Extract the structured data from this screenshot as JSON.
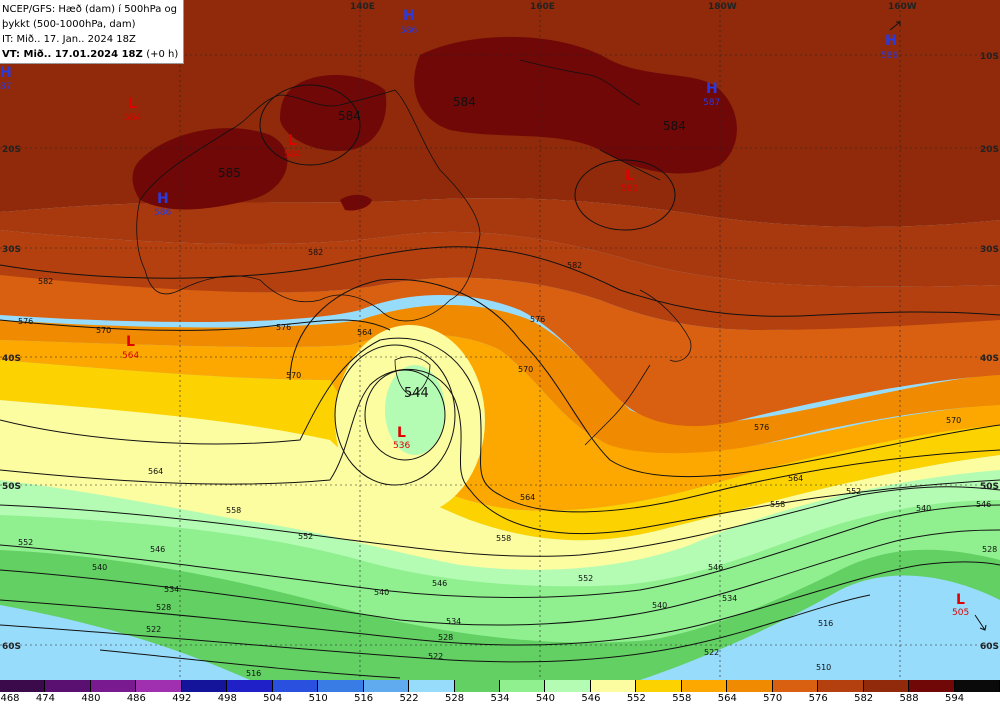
{
  "info": {
    "line1": "NCEP/GFS: Hæð (dam) í 500hPa og",
    "line2": "þykkt (500-1000hPa, dam)",
    "line3": "IT: Mið.. 17. Jan.. 2024 18Z",
    "vt": "VT: Mið.. 17.01.2024 18Z",
    "offset": "(+0 h)"
  },
  "map": {
    "lon_labels": [
      "140E",
      "160E",
      "180W",
      "160W"
    ],
    "lat_labels": [
      "10S",
      "20S",
      "30S",
      "40S",
      "50S",
      "60S"
    ],
    "centers": [
      {
        "type": "H",
        "value": "586"
      },
      {
        "type": "H",
        "value": "586"
      },
      {
        "type": "H",
        "value": "87"
      },
      {
        "type": "L",
        "value": "584"
      },
      {
        "type": "L",
        "value": "584"
      },
      {
        "type": "H",
        "value": "586"
      },
      {
        "type": "H",
        "value": "587"
      },
      {
        "type": "L",
        "value": "580"
      },
      {
        "type": "L",
        "value": "564"
      },
      {
        "type": "L",
        "value": "536"
      },
      {
        "type": "L",
        "value": "505"
      }
    ],
    "region_labels": [
      "585",
      "584",
      "584",
      "584",
      "544"
    ],
    "contour_labels": [
      "582",
      "582",
      "582",
      "576",
      "576",
      "576",
      "576",
      "570",
      "570",
      "570",
      "570",
      "564",
      "564",
      "564",
      "564",
      "558",
      "558",
      "558",
      "552",
      "552",
      "552",
      "552",
      "546",
      "546",
      "546",
      "546",
      "540",
      "540",
      "540",
      "540",
      "534",
      "534",
      "534",
      "528",
      "528",
      "528",
      "522",
      "522",
      "522",
      "516",
      "516",
      "510"
    ]
  },
  "legend": {
    "values": [
      "468",
      "474",
      "480",
      "486",
      "492",
      "498",
      "504",
      "510",
      "516",
      "522",
      "528",
      "534",
      "540",
      "546",
      "552",
      "558",
      "564",
      "570",
      "576",
      "582",
      "588",
      "594"
    ],
    "colors": [
      "#3a0a4a",
      "#5a1070",
      "#7a1a90",
      "#a030b0",
      "#14149a",
      "#2020c8",
      "#2a50e0",
      "#3a7ce6",
      "#60aaf0",
      "#98dcfc",
      "#62d062",
      "#90f090",
      "#b4fcb4",
      "#fcfca0",
      "#fcd200",
      "#fca800",
      "#f08a00",
      "#d86010",
      "#b44010",
      "#902a0a",
      "#700808",
      "#0a0a0a"
    ]
  }
}
